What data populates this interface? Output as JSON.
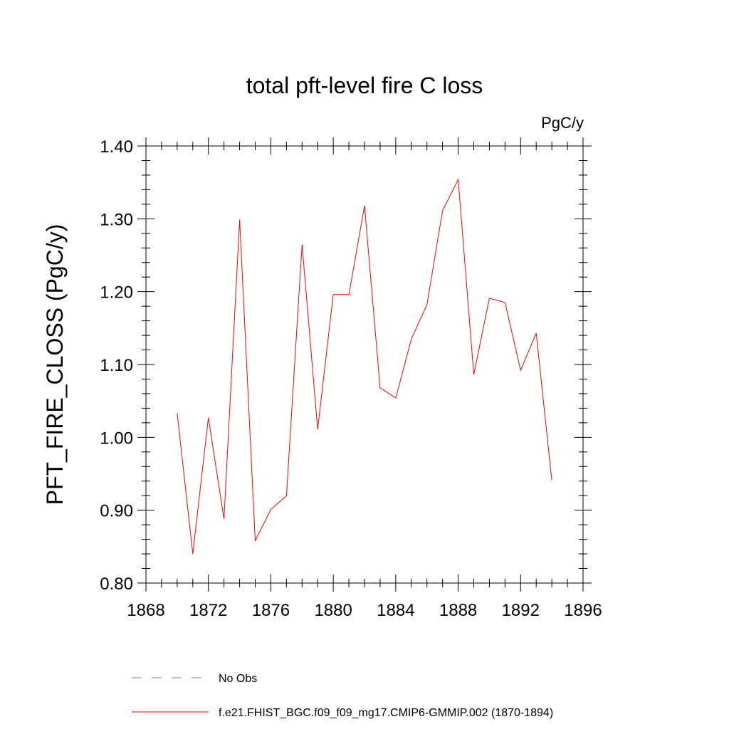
{
  "chart_data": {
    "type": "line",
    "title": "total pft-level fire C loss",
    "units_label": "PgC/y",
    "xlabel": "",
    "ylabel": "PFT_FIRE_CLOSS  (PgC/y)",
    "xlim": [
      1868,
      1896
    ],
    "ylim": [
      0.8,
      1.4
    ],
    "x_ticks": [
      1868,
      1872,
      1876,
      1880,
      1884,
      1888,
      1892,
      1896
    ],
    "x_tick_labels": [
      "1868",
      "1872",
      "1876",
      "1880",
      "1884",
      "1888",
      "1892",
      "1896"
    ],
    "y_ticks": [
      0.8,
      0.9,
      1.0,
      1.1,
      1.2,
      1.3,
      1.4
    ],
    "y_tick_labels": [
      "0.80",
      "0.90",
      "1.00",
      "1.10",
      "1.20",
      "1.30",
      "1.40"
    ],
    "grid": false,
    "legend_position": "bottom",
    "series": [
      {
        "name": "f.e21.FHIST_BGC.f09_f09_mg17.CMIP6-GMMIP.002 (1870-1894)",
        "color": "#ff0000",
        "style": "solid",
        "x": [
          1870,
          1871,
          1872,
          1873,
          1874,
          1875,
          1876,
          1877,
          1878,
          1879,
          1880,
          1881,
          1882,
          1883,
          1884,
          1885,
          1886,
          1887,
          1888,
          1889,
          1890,
          1891,
          1892,
          1893,
          1894
        ],
        "y": [
          1.033,
          0.84,
          1.027,
          0.888,
          1.299,
          0.858,
          0.901,
          0.92,
          1.265,
          1.011,
          1.196,
          1.196,
          1.318,
          1.068,
          1.054,
          1.135,
          1.182,
          1.311,
          1.354,
          1.086,
          1.191,
          1.185,
          1.092,
          1.143,
          0.941
        ]
      }
    ],
    "legend": [
      {
        "label": "No Obs",
        "color": "#7b7bd0",
        "style": "dashed"
      },
      {
        "label": "f.e21.FHIST_BGC.f09_f09_mg17.CMIP6-GMMIP.002 (1870-1894)",
        "color": "#ff0000",
        "style": "solid"
      }
    ]
  }
}
